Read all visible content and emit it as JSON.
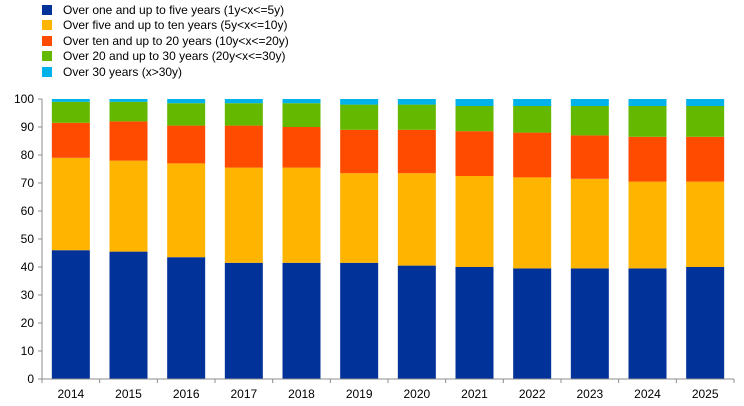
{
  "chart_data": {
    "type": "bar",
    "stacked": true,
    "categories": [
      "2014",
      "2015",
      "2016",
      "2017",
      "2018",
      "2019",
      "2020",
      "2021",
      "2022",
      "2023",
      "2024",
      "2025"
    ],
    "series": [
      {
        "name": "Over one and up to five years (1y<x<=5y)",
        "color": "#003299",
        "values": [
          46,
          45.5,
          43.5,
          41.5,
          41.5,
          41.5,
          40.5,
          40,
          39.5,
          39.5,
          39.5,
          40
        ]
      },
      {
        "name": "Over five and up to ten years (5y<x<=10y)",
        "color": "#ffb400",
        "values": [
          33,
          32.5,
          33.5,
          34,
          34,
          32,
          33,
          32.5,
          32.5,
          32,
          31,
          30.5
        ]
      },
      {
        "name": "Over ten and up to 20 years (10y<x<=20y)",
        "color": "#ff4b00",
        "values": [
          12.5,
          14,
          13.5,
          15,
          14.5,
          15.5,
          15.5,
          16,
          16,
          15.5,
          16,
          16
        ]
      },
      {
        "name": "Over 20 and up to 30 years (20y<x<=30y)",
        "color": "#65b800",
        "values": [
          7.5,
          7,
          8,
          8,
          8.5,
          9,
          9,
          9,
          9.5,
          10.5,
          11,
          11
        ]
      },
      {
        "name": "Over 30 years (x>30y)",
        "color": "#00b1ea",
        "values": [
          1,
          1,
          1.5,
          1.5,
          1.5,
          2,
          2,
          2.5,
          2.5,
          2.5,
          2.5,
          2.5
        ]
      }
    ],
    "title": "",
    "xlabel": "",
    "ylabel": "",
    "ylim": [
      0,
      100
    ],
    "yticks": [
      0,
      10,
      20,
      30,
      40,
      50,
      60,
      70,
      80,
      90,
      100
    ],
    "grid": false,
    "legend_position": "top-left"
  }
}
